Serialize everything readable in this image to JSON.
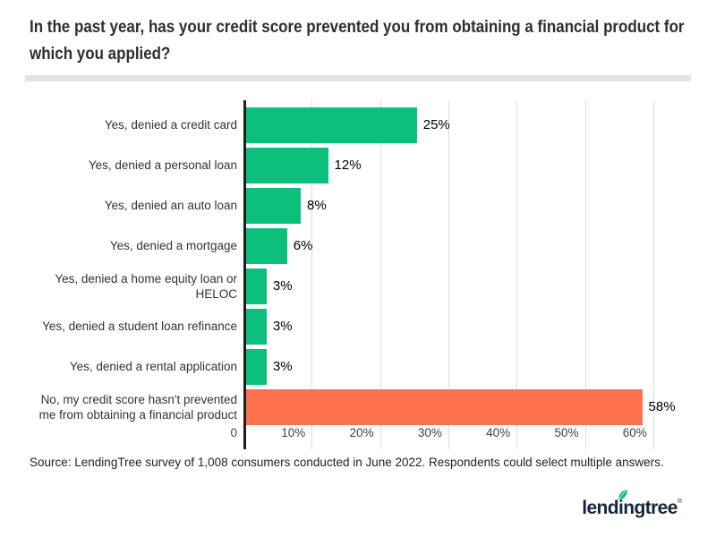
{
  "header": {
    "title": "In the past year, has your credit score prevented you from obtaining a financial product for which you applied?"
  },
  "chart_data": {
    "type": "bar",
    "orientation": "horizontal",
    "title": "In the past year, has your credit score prevented you from obtaining a financial product for which you applied?",
    "categories": [
      "Yes, denied a credit card",
      "Yes, denied a personal loan",
      "Yes, denied an auto loan",
      "Yes, denied a mortgage",
      "Yes, denied a home equity loan or HELOC",
      "Yes, denied a student loan refinance",
      "Yes, denied a rental application",
      "No, my credit score hasn't prevented me from obtaining a financial product"
    ],
    "values": [
      25,
      12,
      8,
      6,
      3,
      3,
      3,
      58
    ],
    "value_labels": [
      "25%",
      "12%",
      "8%",
      "6%",
      "3%",
      "3%",
      "3%",
      "58%"
    ],
    "groups": [
      "yes",
      "yes",
      "yes",
      "yes",
      "yes",
      "yes",
      "yes",
      "no"
    ],
    "x_ticks": [
      "0",
      "10%",
      "20%",
      "30%",
      "40%",
      "50%",
      "60%"
    ],
    "xlim": [
      0,
      64
    ],
    "grid": "vertical",
    "legend": "none"
  },
  "colors": {
    "yes_bar": "#0dbf7c",
    "no_bar": "#fc714e",
    "axis": "#1d1d1d",
    "gridline": "#dcdcdc",
    "divider": "#e3e3e3",
    "title_text": "#2e2e2e",
    "logo_navy": "#16243d",
    "leaf_green": "#16b576"
  },
  "footer": {
    "source_note": "Source: LendingTree survey of 1,008 consumers conducted in June 2022. Respondents could select multiple answers.",
    "logo_text": "lendingtree",
    "logo_mark": "®"
  }
}
